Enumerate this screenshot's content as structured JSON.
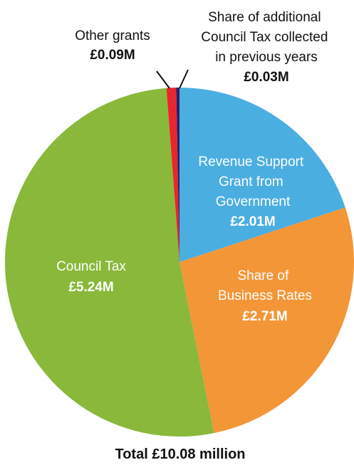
{
  "chart_data": {
    "type": "pie",
    "slices": [
      {
        "label_lines": [
          "Revenue Support",
          "Grant from",
          "Government"
        ],
        "value_label": "£2.01M",
        "value": 2.01,
        "color": "#4baee0",
        "label_color": "#ffffff"
      },
      {
        "label_lines": [
          "Share of",
          "Business Rates"
        ],
        "value_label": "£2.71M",
        "value": 2.71,
        "color": "#f39638",
        "label_color": "#ffffff"
      },
      {
        "label_lines": [
          "Council Tax"
        ],
        "value_label": "£5.24M",
        "value": 5.24,
        "color": "#89b83a",
        "label_color": "#ffffff"
      },
      {
        "label_lines": [
          "Other grants"
        ],
        "value_label": "£0.09M",
        "value": 0.09,
        "color": "#e8262c",
        "label_color": "#111111"
      },
      {
        "label_lines": [
          "Share of additional",
          "Council Tax collected",
          "in previous years"
        ],
        "value_label": "£0.03M",
        "value": 0.03,
        "color": "#2a1f6b",
        "label_color": "#111111"
      }
    ],
    "total_label": "Total £10.08 million"
  }
}
